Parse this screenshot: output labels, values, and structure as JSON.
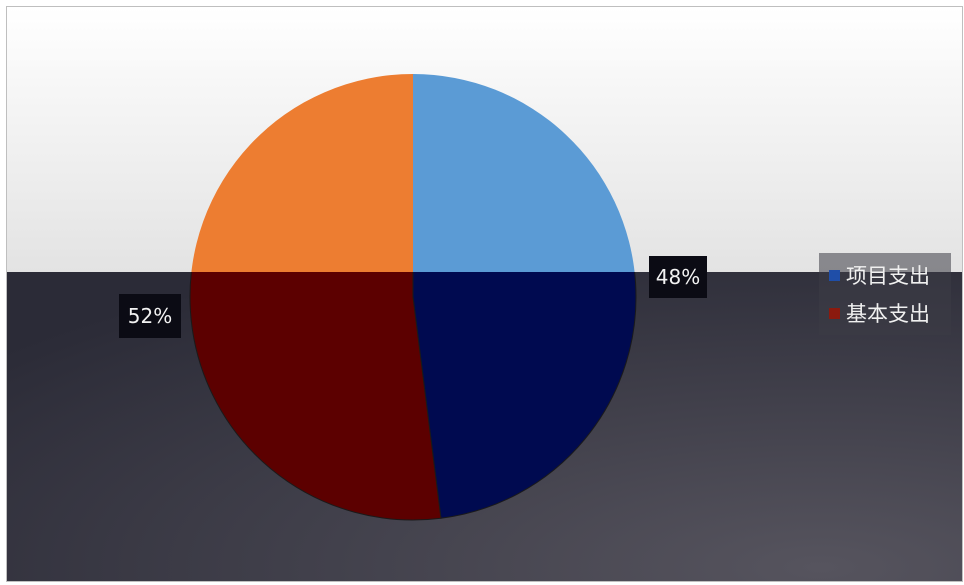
{
  "chart_data": {
    "type": "pie",
    "title": "",
    "slices": [
      {
        "name": "项目支出",
        "value": 48,
        "label": "48%",
        "color": "#000a50"
      },
      {
        "name": "基本支出",
        "value": 52,
        "label": "52%",
        "color": "#5c0000"
      }
    ],
    "reflection_colors": [
      "#5b9bd5",
      "#ed7d31"
    ],
    "legend_position": "right",
    "colors": {
      "top_background": "#f2f2f2",
      "bottom_background": "#3a3a48",
      "label_box": "#0b0b14"
    }
  }
}
